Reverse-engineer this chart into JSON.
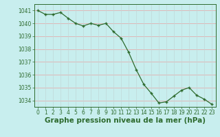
{
  "x": [
    0,
    1,
    2,
    3,
    4,
    5,
    6,
    7,
    8,
    9,
    10,
    11,
    12,
    13,
    14,
    15,
    16,
    17,
    18,
    19,
    20,
    21,
    22,
    23
  ],
  "y": [
    1041.0,
    1040.7,
    1040.7,
    1040.85,
    1040.4,
    1040.0,
    1039.8,
    1040.0,
    1039.85,
    1040.0,
    1039.35,
    1038.85,
    1037.75,
    1036.4,
    1035.25,
    1034.55,
    1033.8,
    1033.9,
    1034.35,
    1034.8,
    1035.0,
    1034.4,
    1034.1,
    1033.7
  ],
  "line_color": "#2d6a2d",
  "marker_color": "#2d6a2d",
  "bg_color": "#c8eeee",
  "grid_color_h": "#e8a0a0",
  "grid_color_v": "#c0d8d8",
  "text_color": "#2d6a2d",
  "xlabel": "Graphe pression niveau de la mer (hPa)",
  "ylim": [
    1033.5,
    1041.5
  ],
  "yticks": [
    1034,
    1035,
    1036,
    1037,
    1038,
    1039,
    1040,
    1041
  ],
  "xticks": [
    0,
    1,
    2,
    3,
    4,
    5,
    6,
    7,
    8,
    9,
    10,
    11,
    12,
    13,
    14,
    15,
    16,
    17,
    18,
    19,
    20,
    21,
    22,
    23
  ],
  "tick_fontsize": 5.5,
  "xlabel_fontsize": 7.5,
  "marker_size": 3.0,
  "line_width": 0.9
}
